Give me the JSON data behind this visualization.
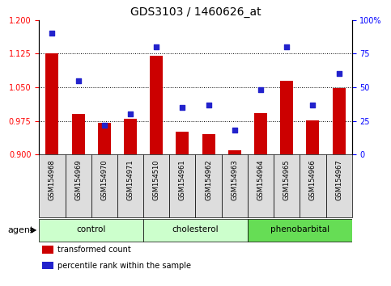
{
  "title": "GDS3103 / 1460626_at",
  "samples": [
    "GSM154968",
    "GSM154969",
    "GSM154970",
    "GSM154971",
    "GSM154510",
    "GSM154961",
    "GSM154962",
    "GSM154963",
    "GSM154964",
    "GSM154965",
    "GSM154966",
    "GSM154967"
  ],
  "transformed_count": [
    1.125,
    0.99,
    0.97,
    0.98,
    1.121,
    0.95,
    0.945,
    0.91,
    0.993,
    1.065,
    0.976,
    1.048
  ],
  "percentile_rank": [
    90,
    55,
    22,
    30,
    80,
    35,
    37,
    18,
    48,
    80,
    37,
    60
  ],
  "ylim_left": [
    0.9,
    1.2
  ],
  "ylim_right": [
    0,
    100
  ],
  "yticks_left": [
    0.9,
    0.975,
    1.05,
    1.125,
    1.2
  ],
  "yticks_right": [
    0,
    25,
    50,
    75,
    100
  ],
  "bar_color": "#cc0000",
  "scatter_color": "#2222cc",
  "title_fontsize": 10,
  "groups": [
    {
      "label": "control",
      "start": 0,
      "end": 3,
      "color": "#ccffcc"
    },
    {
      "label": "cholesterol",
      "start": 4,
      "end": 7,
      "color": "#ccffcc"
    },
    {
      "label": "phenobarbital",
      "start": 8,
      "end": 11,
      "color": "#66dd55"
    }
  ],
  "agent_label": "agent",
  "legend": [
    {
      "color": "#cc0000",
      "label": "transformed count"
    },
    {
      "color": "#2222cc",
      "label": "percentile rank within the sample"
    }
  ]
}
